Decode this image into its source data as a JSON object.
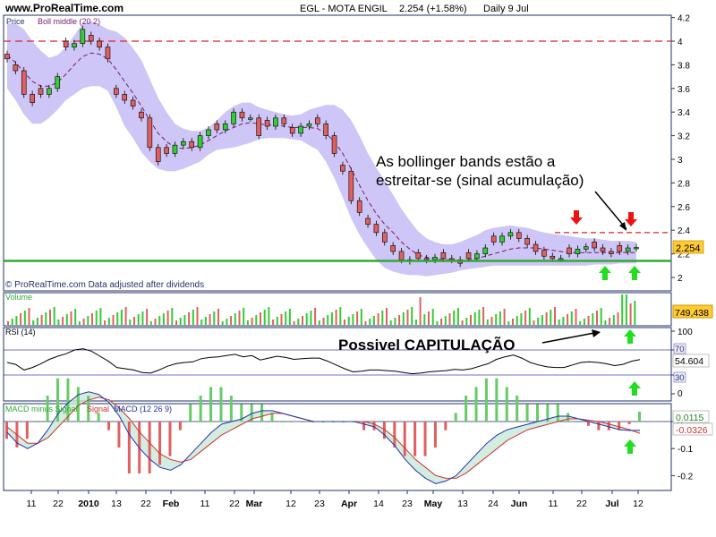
{
  "header": {
    "site": "www.ProRealTime.com",
    "instrument": "EGL - MOTA ENGIL",
    "last": "2.254 (+1.58%)",
    "period": "Daily  9 Jul"
  },
  "price_panel": {
    "label": "Price",
    "indicator_label": "Boll middle (20 2)",
    "footer": "© ProRealTime.com  Data adjusted after dividends",
    "last_value": "2.254",
    "annotation_bands": "As bollinger bands estão a\nestreitar-se (sinal acumulação)"
  },
  "volume_panel": {
    "label": "Volume",
    "last_value": "749,438"
  },
  "rsi_panel": {
    "label": "RSI (14)",
    "annotation": "Possivel CAPITULAÇÃO",
    "last_value": "54.604"
  },
  "macd_panel": {
    "label_hist": "MACD minus Signal",
    "label_signal": "Signal",
    "label_macd": "MACD (12 26 9)",
    "last_hist": "0.0115",
    "last_macd": "-0.0326"
  },
  "colors": {
    "up_candle": "#33cc33",
    "down_candle": "#e06060",
    "bollinger_fill": "#c8c0f6",
    "middle_band": "#7a1a6a",
    "resistance": "#dd2222",
    "support": "#33aa33",
    "rsi_line": "#000000",
    "macd_up": "#66cc66",
    "macd_down": "#e06060",
    "arrow_up": "#22dd22",
    "arrow_down": "#ee1111",
    "axis_frame": "#223366"
  },
  "chart_data": [
    {
      "type": "candlestick",
      "title": "EGL - MOTA ENGIL",
      "ylim": [
        1.9,
        4.25
      ],
      "y_ticks": [
        "2",
        "2.2",
        "2.4",
        "2.6",
        "2.8",
        "3",
        "3.2",
        "3.4",
        "3.6",
        "3.8",
        "4",
        "4.2"
      ],
      "x_ticks": [
        "11",
        "22",
        "2010",
        "13",
        "22",
        "Feb",
        "11",
        "22",
        "Mar",
        "12",
        "23",
        "Apr",
        "14",
        "23",
        "May",
        "13",
        "24",
        "Jun",
        "11",
        "22",
        "Jul",
        "12"
      ],
      "x": [
        0,
        2,
        4,
        6,
        8,
        10,
        12,
        14,
        16,
        18,
        20,
        22,
        24,
        26,
        28,
        30,
        32,
        34,
        36,
        38,
        40,
        42,
        44,
        46,
        48,
        50,
        52,
        54,
        56,
        58,
        60,
        62,
        64,
        66,
        68,
        70,
        72,
        74,
        76,
        78,
        80,
        82,
        84,
        86,
        88,
        90,
        92,
        94,
        96,
        98,
        100,
        102,
        104,
        106,
        108,
        110,
        112,
        114,
        116,
        118,
        120,
        122,
        124,
        126,
        128,
        130,
        132,
        134,
        136,
        138,
        140,
        142,
        144,
        146,
        148,
        150
      ],
      "close": [
        3.85,
        3.75,
        3.55,
        3.48,
        3.55,
        3.6,
        3.7,
        3.95,
        3.98,
        4.1,
        4.0,
        3.95,
        3.85,
        3.55,
        3.5,
        3.45,
        3.35,
        3.1,
        2.98,
        3.05,
        3.12,
        3.15,
        3.1,
        3.2,
        3.25,
        3.25,
        3.3,
        3.4,
        3.35,
        3.35,
        3.2,
        3.28,
        3.35,
        3.3,
        3.22,
        3.28,
        3.3,
        3.3,
        3.2,
        3.05,
        2.9,
        2.65,
        2.55,
        2.45,
        2.38,
        2.3,
        2.22,
        2.15,
        2.14,
        2.16,
        2.15,
        2.17,
        2.16,
        2.15,
        2.12,
        2.16,
        2.2,
        2.25,
        2.3,
        2.35,
        2.38,
        2.33,
        2.28,
        2.22,
        2.18,
        2.16,
        2.16,
        2.2,
        2.24,
        2.26,
        2.25,
        2.22,
        2.2,
        2.22,
        2.25,
        2.254
      ],
      "bb_mid": [
        3.88,
        3.82,
        3.74,
        3.66,
        3.62,
        3.62,
        3.65,
        3.72,
        3.8,
        3.87,
        3.9,
        3.89,
        3.85,
        3.76,
        3.66,
        3.56,
        3.45,
        3.33,
        3.22,
        3.15,
        3.1,
        3.09,
        3.1,
        3.12,
        3.16,
        3.2,
        3.24,
        3.27,
        3.3,
        3.31,
        3.3,
        3.29,
        3.29,
        3.28,
        3.27,
        3.27,
        3.27,
        3.26,
        3.22,
        3.15,
        3.05,
        2.92,
        2.78,
        2.65,
        2.54,
        2.45,
        2.38,
        2.3,
        2.24,
        2.19,
        2.17,
        2.16,
        2.15,
        2.15,
        2.14,
        2.15,
        2.16,
        2.18,
        2.2,
        2.22,
        2.24,
        2.25,
        2.25,
        2.25,
        2.24,
        2.23,
        2.22,
        2.21,
        2.21,
        2.21,
        2.21,
        2.21,
        2.21,
        2.21,
        2.21,
        2.21
      ],
      "bb_upper": [
        4.15,
        4.15,
        4.1,
        4.0,
        3.92,
        3.86,
        3.88,
        3.95,
        4.05,
        4.15,
        4.17,
        4.14,
        4.1,
        4.08,
        4.03,
        3.94,
        3.84,
        3.68,
        3.52,
        3.4,
        3.3,
        3.26,
        3.24,
        3.24,
        3.27,
        3.33,
        3.4,
        3.45,
        3.48,
        3.48,
        3.44,
        3.42,
        3.4,
        3.38,
        3.37,
        3.38,
        3.42,
        3.44,
        3.46,
        3.46,
        3.42,
        3.33,
        3.2,
        3.05,
        2.93,
        2.82,
        2.7,
        2.58,
        2.48,
        2.39,
        2.33,
        2.3,
        2.28,
        2.28,
        2.3,
        2.33,
        2.36,
        2.4,
        2.42,
        2.43,
        2.44,
        2.43,
        2.42,
        2.4,
        2.38,
        2.37,
        2.36,
        2.35,
        2.34,
        2.33,
        2.33,
        2.32,
        2.31,
        2.31,
        2.31,
        2.3
      ],
      "bb_lower": [
        3.6,
        3.5,
        3.38,
        3.3,
        3.3,
        3.35,
        3.42,
        3.5,
        3.55,
        3.6,
        3.62,
        3.62,
        3.58,
        3.44,
        3.28,
        3.18,
        3.06,
        2.98,
        2.92,
        2.9,
        2.9,
        2.92,
        2.95,
        2.98,
        3.04,
        3.08,
        3.09,
        3.1,
        3.12,
        3.14,
        3.17,
        3.18,
        3.18,
        3.18,
        3.17,
        3.16,
        3.12,
        3.08,
        2.98,
        2.84,
        2.68,
        2.5,
        2.36,
        2.25,
        2.15,
        2.08,
        2.05,
        2.03,
        2.02,
        2.02,
        2.01,
        2.02,
        2.03,
        2.04,
        2.06,
        2.07,
        2.08,
        2.09,
        2.1,
        2.1,
        2.1,
        2.1,
        2.1,
        2.1,
        2.1,
        2.1,
        2.1,
        2.1,
        2.1,
        2.1,
        2.11,
        2.11,
        2.11,
        2.12,
        2.12,
        2.12
      ],
      "resistance_levels": [
        4.0,
        2.38
      ],
      "support_level": 2.14
    },
    {
      "type": "bar",
      "title": "Volume",
      "last_value": 749438
    },
    {
      "type": "line",
      "title": "RSI (14)",
      "ylim": [
        0,
        100
      ],
      "y_ticks": [
        "0",
        "30",
        "70",
        "100"
      ],
      "levels": [
        30,
        70
      ],
      "values": [
        50,
        47,
        38,
        42,
        48,
        55,
        60,
        64,
        70,
        72,
        68,
        60,
        52,
        42,
        40,
        38,
        34,
        33,
        38,
        44,
        48,
        50,
        51,
        56,
        58,
        59,
        61,
        63,
        59,
        61,
        54,
        57,
        60,
        58,
        55,
        56,
        57,
        57,
        52,
        46,
        40,
        35,
        36,
        38,
        38,
        37,
        36,
        34,
        32,
        33,
        35,
        36,
        37,
        39,
        38,
        40,
        44,
        48,
        55,
        59,
        62,
        57,
        50,
        46,
        43,
        42,
        42,
        46,
        50,
        51,
        50,
        48,
        45,
        47,
        52,
        54.6
      ]
    },
    {
      "type": "line",
      "title": "MACD (12 26 9)",
      "ylim": [
        -0.24,
        0.13
      ],
      "y_ticks": [
        "-0.2",
        "-0.1",
        "0"
      ],
      "macd": [
        -0.04,
        -0.08,
        -0.1,
        -0.08,
        -0.03,
        0.03,
        0.07,
        0.1,
        0.11,
        0.1,
        0.07,
        0.02,
        -0.05,
        -0.1,
        -0.14,
        -0.17,
        -0.18,
        -0.16,
        -0.12,
        -0.08,
        -0.04,
        -0.01,
        0.0,
        0.01,
        0.03,
        0.04,
        0.04,
        0.03,
        0.02,
        0.01,
        0.0,
        0.0,
        0.0,
        0.0,
        0.0,
        -0.01,
        -0.02,
        -0.05,
        -0.09,
        -0.14,
        -0.18,
        -0.21,
        -0.23,
        -0.22,
        -0.2,
        -0.16,
        -0.12,
        -0.08,
        -0.05,
        -0.03,
        -0.02,
        -0.01,
        0.0,
        0.01,
        0.02,
        0.02,
        0.01,
        0.0,
        -0.01,
        -0.02,
        -0.03,
        -0.033,
        -0.0326
      ],
      "signal": [
        -0.02,
        -0.05,
        -0.08,
        -0.08,
        -0.06,
        -0.02,
        0.02,
        0.06,
        0.08,
        0.09,
        0.08,
        0.05,
        0.01,
        -0.04,
        -0.08,
        -0.12,
        -0.14,
        -0.15,
        -0.14,
        -0.11,
        -0.08,
        -0.05,
        -0.03,
        -0.01,
        0.01,
        0.02,
        0.03,
        0.03,
        0.02,
        0.01,
        0.0,
        0.0,
        0.0,
        0.0,
        0.0,
        0.0,
        -0.01,
        -0.03,
        -0.06,
        -0.1,
        -0.14,
        -0.17,
        -0.2,
        -0.21,
        -0.21,
        -0.19,
        -0.16,
        -0.13,
        -0.1,
        -0.07,
        -0.05,
        -0.03,
        -0.02,
        -0.01,
        0.0,
        0.01,
        0.01,
        0.005,
        0.0,
        -0.01,
        -0.02,
        -0.03,
        -0.044
      ]
    }
  ]
}
